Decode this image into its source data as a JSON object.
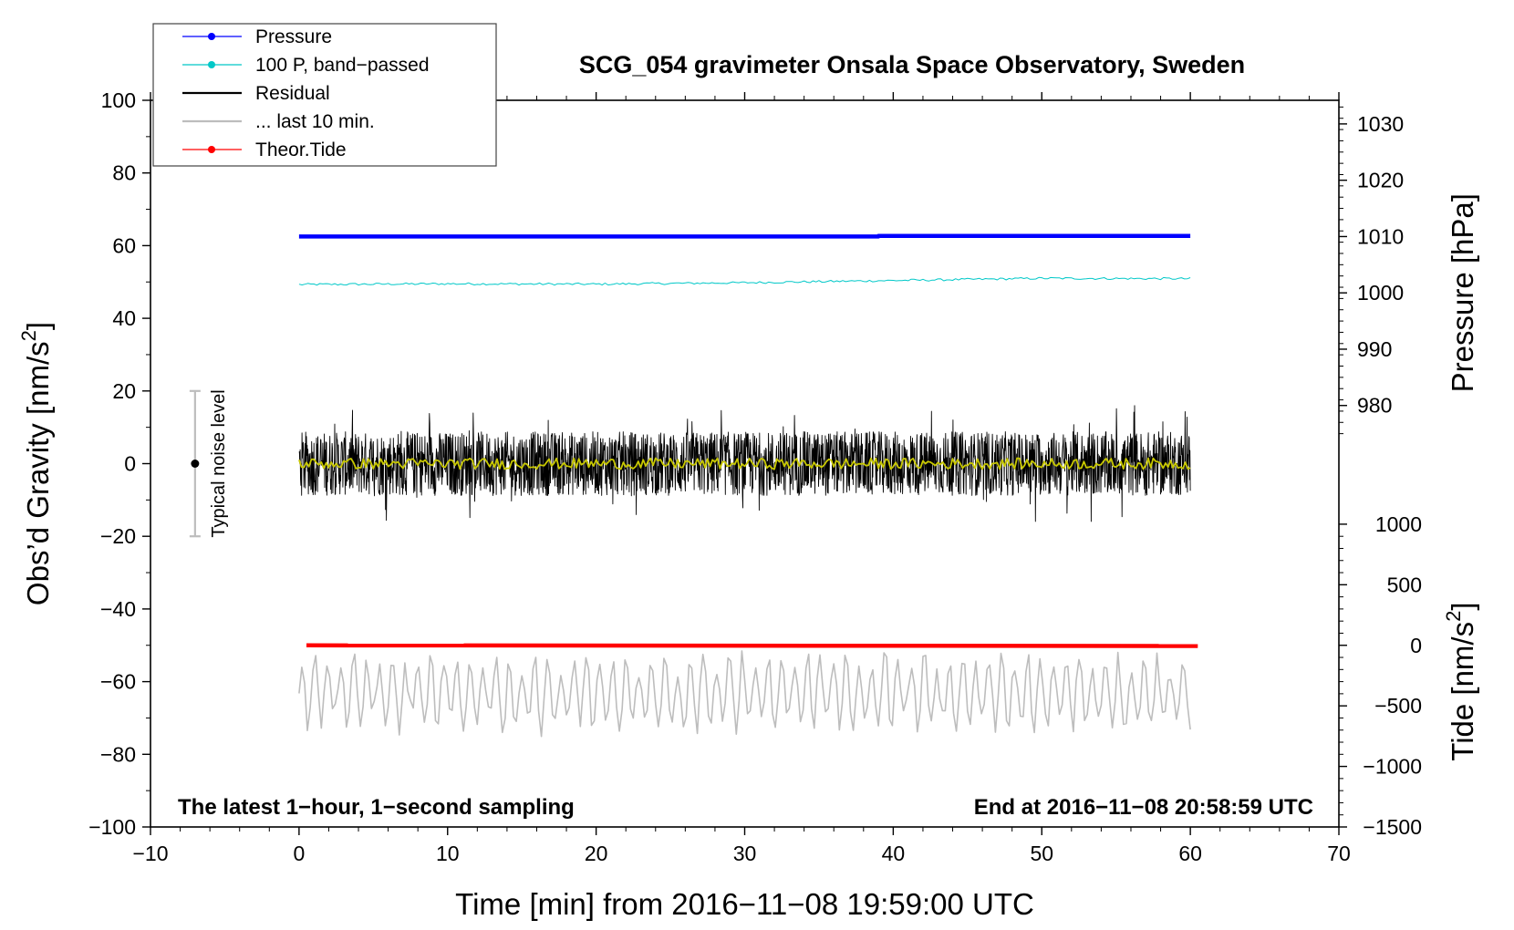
{
  "chart_data": {
    "type": "line",
    "title": "SCG_054 gravimeter Onsala Space Observatory, Sweden",
    "xlabel": "Time [min] from 2016−11−08 19:59:00 UTC",
    "ylabel_left": "Obs’d Gravity [nm/s²]",
    "ylabel_left_main": "Obs’d Gravity [nm/s",
    "ylabel_left_sup": "2",
    "ylabel_left_close": "]",
    "ylabel_right_pressure": "Pressure [hPa]",
    "ylabel_right_tide": "Tide [nm/s²]",
    "ylabel_right_tide_main": "Tide [nm/s",
    "ylabel_right_tide_sup": "2",
    "ylabel_right_tide_close": "]",
    "xlim": [
      -10,
      70
    ],
    "ylim_left": [
      -100,
      100
    ],
    "x_ticks": [
      -10,
      0,
      10,
      20,
      30,
      40,
      50,
      60,
      70
    ],
    "x_tick_labels": [
      "−10",
      "0",
      "10",
      "20",
      "30",
      "40",
      "50",
      "60",
      "70"
    ],
    "y_left_ticks": [
      100,
      80,
      60,
      40,
      20,
      0,
      -20,
      -40,
      -60,
      -80,
      -100
    ],
    "y_left_tick_labels": [
      "100",
      "80",
      "60",
      "40",
      "20",
      "0",
      "−20",
      "−40",
      "−60",
      "−80",
      "−100"
    ],
    "pressure_axis": {
      "ticks": [
        1030,
        1020,
        1010,
        1000,
        990,
        980
      ],
      "tick_labels": [
        "1030",
        "1020",
        "1010",
        "1000",
        "990",
        "980"
      ],
      "map_hpa": [
        1010,
        1000
      ],
      "map_left": [
        62.5,
        47.0
      ]
    },
    "tide_axis": {
      "ticks": [
        1000,
        500,
        0,
        -500,
        -1000,
        -1500
      ],
      "tick_labels": [
        "1000",
        "500",
        "0",
        "−500",
        "−1000",
        "−1500"
      ],
      "map_tide": [
        0,
        -1500
      ],
      "map_left": [
        -50,
        -100
      ]
    },
    "legend": {
      "position": "top-left",
      "entries": [
        {
          "label": "Pressure",
          "color": "#0000ff",
          "marker": true
        },
        {
          "label": "100 P, band−passed",
          "color": "#00c8c8",
          "marker": true
        },
        {
          "label": "Residual",
          "color": "#000000",
          "marker": false
        },
        {
          "label": "... last 10 min.",
          "color": "#bdbdbd",
          "marker": false
        },
        {
          "label": "Theor.Tide",
          "color": "#ff0000",
          "marker": true
        }
      ]
    },
    "series": [
      {
        "name": "Pressure",
        "axis": "pressure",
        "color": "#0000ff",
        "x": [
          0,
          39,
          39,
          60
        ],
        "values": [
          1010.0,
          1010.0,
          1010.1,
          1010.1
        ]
      },
      {
        "name": "100 P, band−passed",
        "axis": "left",
        "color": "#00c8c8",
        "x": [
          0,
          10,
          20,
          30,
          40,
          50,
          60
        ],
        "values": [
          49.3,
          49.5,
          49.4,
          49.8,
          50.4,
          51.0,
          50.9
        ],
        "ripple": 0.6
      },
      {
        "name": "Residual",
        "axis": "left",
        "color": "#000000",
        "x_range": [
          0,
          60
        ],
        "mean": 0,
        "amplitude": 16,
        "min": -20,
        "max": 17
      },
      {
        "name": "Residual smoothed",
        "axis": "left",
        "color": "#c8c800",
        "x_range": [
          0,
          60
        ],
        "mean": 0,
        "amplitude": 1.5
      },
      {
        "name": "Theor.Tide",
        "axis": "tide",
        "color": "#ff0000",
        "x": [
          0.5,
          60.5
        ],
        "values": [
          0,
          -6
        ]
      },
      {
        "name": "... last 10 min.",
        "axis": "left",
        "color": "#bdbdbd",
        "x_range": [
          0,
          60
        ],
        "mean": -63,
        "min": -79,
        "max": -46
      }
    ],
    "noise_bar": {
      "x": -7,
      "y": 0,
      "low": -20,
      "high": 20,
      "label": "Typical noise level"
    },
    "annotations": {
      "left": "The latest 1−hour, 1−second sampling",
      "right": "End at 2016−11−08 20:58:59 UTC"
    }
  }
}
